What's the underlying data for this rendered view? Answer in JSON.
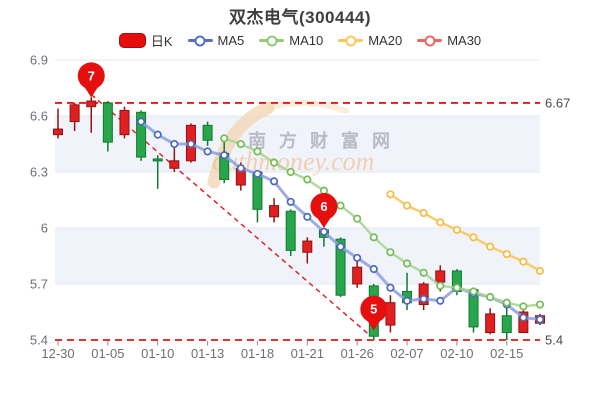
{
  "header": {
    "title": "双杰电气(300444)"
  },
  "legend": {
    "items": [
      {
        "label": "日K",
        "type": "rect",
        "color": "#e60d0d",
        "border": "#a50d0d"
      },
      {
        "label": "MA5",
        "type": "line",
        "color": "#5470c6"
      },
      {
        "label": "MA10",
        "type": "line",
        "color": "#91cc75"
      },
      {
        "label": "MA20",
        "type": "line",
        "color": "#fac858"
      },
      {
        "label": "MA30",
        "type": "line",
        "color": "#ee6666"
      }
    ]
  },
  "watermark": {
    "cn": "南方财富网",
    "en": "outhmoney.com"
  },
  "colors": {
    "up": "#e02020",
    "up_border": "#8f1414",
    "down": "#29a64c",
    "down_border": "#0e7b30",
    "ma5_line": "#8d9fdd",
    "ma5_ring": "#4d68bf",
    "ma10_line": "#a6d693",
    "ma10_ring": "#74bd55",
    "ma20_line": "#f9c95f",
    "ma20_ring": "#f6bb44",
    "ref": "#e21717",
    "pin": "#e60f0f",
    "band": "#f0f3fa",
    "grid": "#e2e7f1",
    "axis_label": "#6e7079",
    "side_label": "#4a4a4a",
    "watermark_cn": "rgba(145,150,162,0.60)",
    "watermark_en": "rgba(242,166,90,0.45)",
    "swoosh": "rgba(243,214,178,0.75)"
  },
  "chart_data": {
    "type": "candlestick+line",
    "ylim": [
      5.4,
      6.9
    ],
    "grid": true,
    "legend_position": "top",
    "y_axis": {
      "labels": [
        "6.9",
        "6.6",
        "6.3",
        "6",
        "5.7",
        "5.4"
      ],
      "values": [
        6.9,
        6.6,
        6.3,
        6.0,
        5.7,
        5.4
      ]
    },
    "x_axis": {
      "labels": [
        "12-30",
        "01-05",
        "01-10",
        "01-13",
        "01-18",
        "01-21",
        "01-26",
        "02-07",
        "02-10",
        "02-15"
      ],
      "label_indices": [
        0,
        3,
        6,
        9,
        12,
        15,
        18,
        21,
        24,
        27
      ]
    },
    "candles_ohlc_note": "[open, close, low, high] ; red(up)=close>open, green(down)=close<open",
    "candles": [
      [
        6.5,
        6.53,
        6.48,
        6.64
      ],
      [
        6.57,
        6.66,
        6.52,
        6.67
      ],
      [
        6.65,
        6.68,
        6.51,
        6.7
      ],
      [
        6.67,
        6.46,
        6.41,
        6.68
      ],
      [
        6.5,
        6.63,
        6.48,
        6.65
      ],
      [
        6.62,
        6.38,
        6.36,
        6.63
      ],
      [
        6.37,
        6.36,
        6.21,
        6.39
      ],
      [
        6.32,
        6.36,
        6.3,
        6.43
      ],
      [
        6.36,
        6.55,
        6.35,
        6.56
      ],
      [
        6.55,
        6.47,
        6.44,
        6.57
      ],
      [
        6.4,
        6.26,
        6.24,
        6.46
      ],
      [
        6.23,
        6.32,
        6.2,
        6.35
      ],
      [
        6.3,
        6.1,
        6.03,
        6.31
      ],
      [
        6.06,
        6.12,
        6.03,
        6.16
      ],
      [
        6.09,
        5.88,
        5.85,
        6.1
      ],
      [
        5.87,
        5.93,
        5.81,
        5.95
      ],
      [
        5.99,
        5.95,
        5.9,
        6.0
      ],
      [
        5.94,
        5.64,
        5.63,
        5.95
      ],
      [
        5.7,
        5.79,
        5.68,
        5.83
      ],
      [
        5.69,
        5.42,
        5.4,
        5.7
      ],
      [
        5.48,
        5.6,
        5.44,
        5.64
      ],
      [
        5.66,
        5.6,
        5.56,
        5.76
      ],
      [
        5.59,
        5.7,
        5.56,
        5.71
      ],
      [
        5.71,
        5.77,
        5.66,
        5.8
      ],
      [
        5.77,
        5.66,
        5.64,
        5.78
      ],
      [
        5.67,
        5.47,
        5.44,
        5.68
      ],
      [
        5.44,
        5.54,
        5.43,
        5.57
      ],
      [
        5.53,
        5.44,
        5.4,
        5.6
      ],
      [
        5.44,
        5.55,
        5.44,
        5.57
      ],
      [
        5.49,
        5.53,
        5.48,
        5.54
      ]
    ],
    "series": [
      {
        "name": "MA5",
        "start": 5,
        "values": [
          6.57,
          6.5,
          6.45,
          6.45,
          6.41,
          6.39,
          6.32,
          6.29,
          6.25,
          6.14,
          6.06,
          5.98,
          5.9,
          5.84,
          5.78,
          5.68,
          5.61,
          5.62,
          5.61,
          5.68,
          5.65,
          5.63,
          5.59,
          5.52,
          5.51
        ]
      },
      {
        "name": "MA10",
        "start": 10,
        "values": [
          6.48,
          6.45,
          6.41,
          6.35,
          6.3,
          6.26,
          6.2,
          6.12,
          6.05,
          5.95,
          5.87,
          5.81,
          5.76,
          5.69,
          5.68,
          5.66,
          5.63,
          5.6,
          5.58,
          5.59
        ]
      },
      {
        "name": "MA20",
        "start": 20,
        "values": [
          6.18,
          6.12,
          6.08,
          6.03,
          5.99,
          5.95,
          5.9,
          5.86,
          5.82,
          5.77
        ]
      }
    ],
    "ref_lines": [
      {
        "value": 6.67,
        "label": "6.67"
      },
      {
        "value": 5.4,
        "label": "5.4"
      }
    ],
    "trend_line": {
      "from_index": 2,
      "from_value": 6.715,
      "to_index": 18.7,
      "to_value": 5.43
    },
    "markers": [
      {
        "label": "7",
        "index": 2,
        "value": 6.7
      },
      {
        "label": "6",
        "index": 16,
        "value": 6.0
      },
      {
        "label": "5",
        "index": 19,
        "value": 5.45
      }
    ]
  }
}
